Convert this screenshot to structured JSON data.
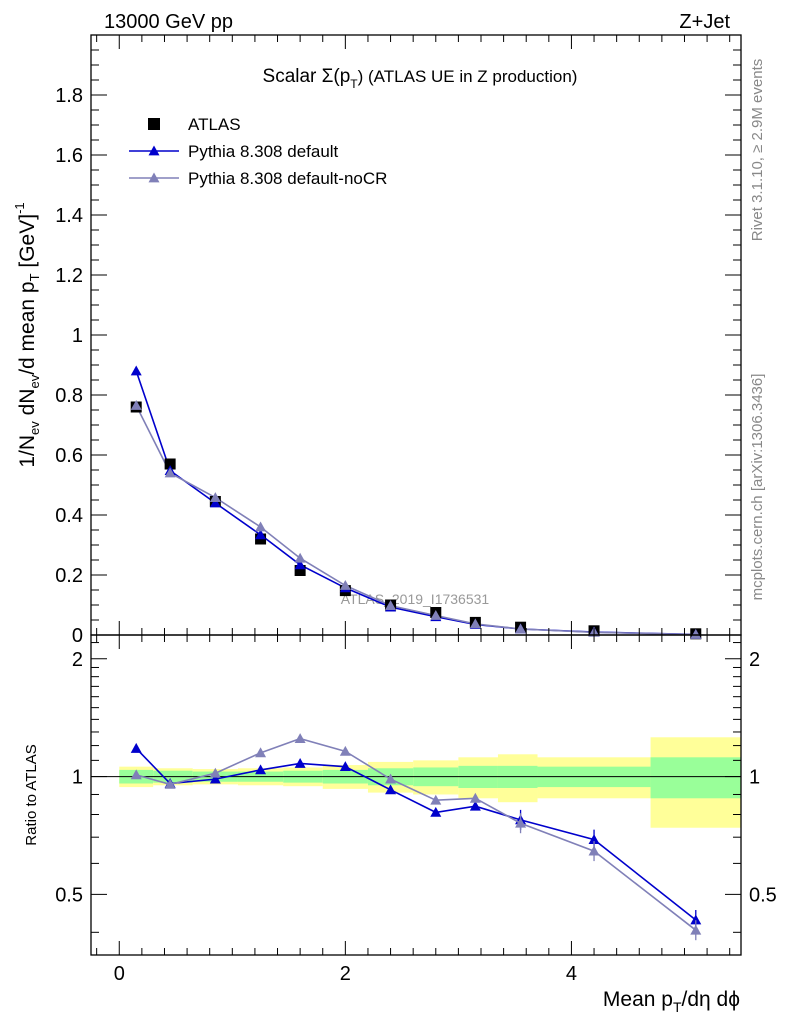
{
  "header": {
    "energy": "13000 GeV pp",
    "process": "Z+Jet"
  },
  "side_labels": {
    "rivet": "Rivet 3.1.10, ≥ 2.9M events",
    "mcplots": "mcplots.cern.ch [arXiv:1306.3436]"
  },
  "chart_data": [
    {
      "type": "line",
      "panel": "main",
      "title": "Scalar Σ(pT) (ATLAS UE in Z production)",
      "title_parts": {
        "pre": "Scalar Σ(p",
        "sub": "T",
        "post": ") (ATLAS UE in Z production)"
      },
      "watermark": "ATLAS_2019_I1736531",
      "ylabel": "1/Nev dNev/d mean pT [GeV]^-1",
      "ylabel_parts": {
        "a": "1/N",
        "ev1": "ev",
        "b": " dN",
        "ev2": "ev",
        "c": "/d mean p",
        "t": "T",
        "d": " [GeV]",
        "sup": "-1"
      },
      "xlim": [
        -0.25,
        5.5
      ],
      "ylim": [
        0,
        2.0
      ],
      "yticks": [
        0,
        0.2,
        0.4,
        0.6,
        0.8,
        1,
        1.2,
        1.4,
        1.6,
        1.8
      ],
      "ytick_labels": [
        "0",
        "0.2",
        "0.4",
        "0.6",
        "0.8",
        "1",
        "1.2",
        "1.4",
        "1.6",
        "1.8"
      ],
      "legend_position": "top-left",
      "series": [
        {
          "name": "ATLAS",
          "color": "#000000",
          "marker": "square",
          "x": [
            0.15,
            0.45,
            0.85,
            1.25,
            1.6,
            2.0,
            2.4,
            2.8,
            3.15,
            3.55,
            4.2,
            5.1
          ],
          "y": [
            0.76,
            0.57,
            0.445,
            0.32,
            0.215,
            0.148,
            0.1,
            0.075,
            0.042,
            0.026,
            0.014,
            0.004
          ]
        },
        {
          "name": "Pythia 8.308 default",
          "color": "#0000cc",
          "marker": "triangle",
          "x": [
            0.15,
            0.45,
            0.85,
            1.25,
            1.6,
            2.0,
            2.4,
            2.8,
            3.15,
            3.55,
            4.2,
            5.1
          ],
          "y": [
            0.88,
            0.548,
            0.44,
            0.334,
            0.234,
            0.157,
            0.093,
            0.061,
            0.035,
            0.02,
            0.0098,
            0.0018
          ]
        },
        {
          "name": "Pythia 8.308 default-noCR",
          "color": "#8080b8",
          "marker": "triangle",
          "x": [
            0.15,
            0.45,
            0.85,
            1.25,
            1.6,
            2.0,
            2.4,
            2.8,
            3.15,
            3.55,
            4.2,
            5.1
          ],
          "y": [
            0.765,
            0.54,
            0.458,
            0.36,
            0.256,
            0.165,
            0.098,
            0.065,
            0.037,
            0.02,
            0.009,
            0.0017
          ]
        }
      ]
    },
    {
      "type": "line",
      "panel": "ratio",
      "ylabel": "Ratio to ATLAS",
      "xlabel": "Mean pT/dη dϕ",
      "xlabel_parts": {
        "a": "Mean p",
        "t": "T",
        "b": "/dη dϕ"
      },
      "xlim": [
        -0.25,
        5.5
      ],
      "ylim": [
        0.35,
        2.3
      ],
      "scale": "log",
      "xticks": [
        0,
        2,
        4
      ],
      "xtick_labels": [
        "0",
        "2",
        "4"
      ],
      "yticks": [
        0.5,
        1,
        2
      ],
      "ytick_labels": [
        "0.5",
        "1",
        "2"
      ],
      "bands": {
        "edges": [
          0,
          0.3,
          0.65,
          1.05,
          1.45,
          1.8,
          2.2,
          2.6,
          3.0,
          3.35,
          3.7,
          4.7,
          5.5
        ],
        "inner": [
          0.04,
          0.035,
          0.03,
          0.03,
          0.035,
          0.04,
          0.05,
          0.055,
          0.065,
          0.065,
          0.06,
          0.12
        ],
        "outer": [
          0.06,
          0.05,
          0.045,
          0.05,
          0.055,
          0.07,
          0.09,
          0.1,
          0.12,
          0.14,
          0.12,
          0.26
        ]
      },
      "series": [
        {
          "name": "Pythia 8.308 default",
          "color": "#0000cc",
          "x": [
            0.15,
            0.45,
            0.85,
            1.25,
            1.6,
            2.0,
            2.4,
            2.8,
            3.15,
            3.55,
            4.2,
            5.1
          ],
          "y": [
            1.18,
            0.96,
            0.985,
            1.04,
            1.08,
            1.06,
            0.925,
            0.81,
            0.84,
            0.775,
            0.69,
            0.43
          ]
        },
        {
          "name": "Pythia 8.308 default-noCR",
          "color": "#8080b8",
          "x": [
            0.15,
            0.45,
            0.85,
            1.25,
            1.6,
            2.0,
            2.4,
            2.8,
            3.15,
            3.55,
            4.2,
            5.1
          ],
          "y": [
            1.01,
            0.955,
            1.02,
            1.15,
            1.25,
            1.16,
            0.985,
            0.87,
            0.88,
            0.76,
            0.645,
            0.405
          ]
        }
      ]
    }
  ]
}
